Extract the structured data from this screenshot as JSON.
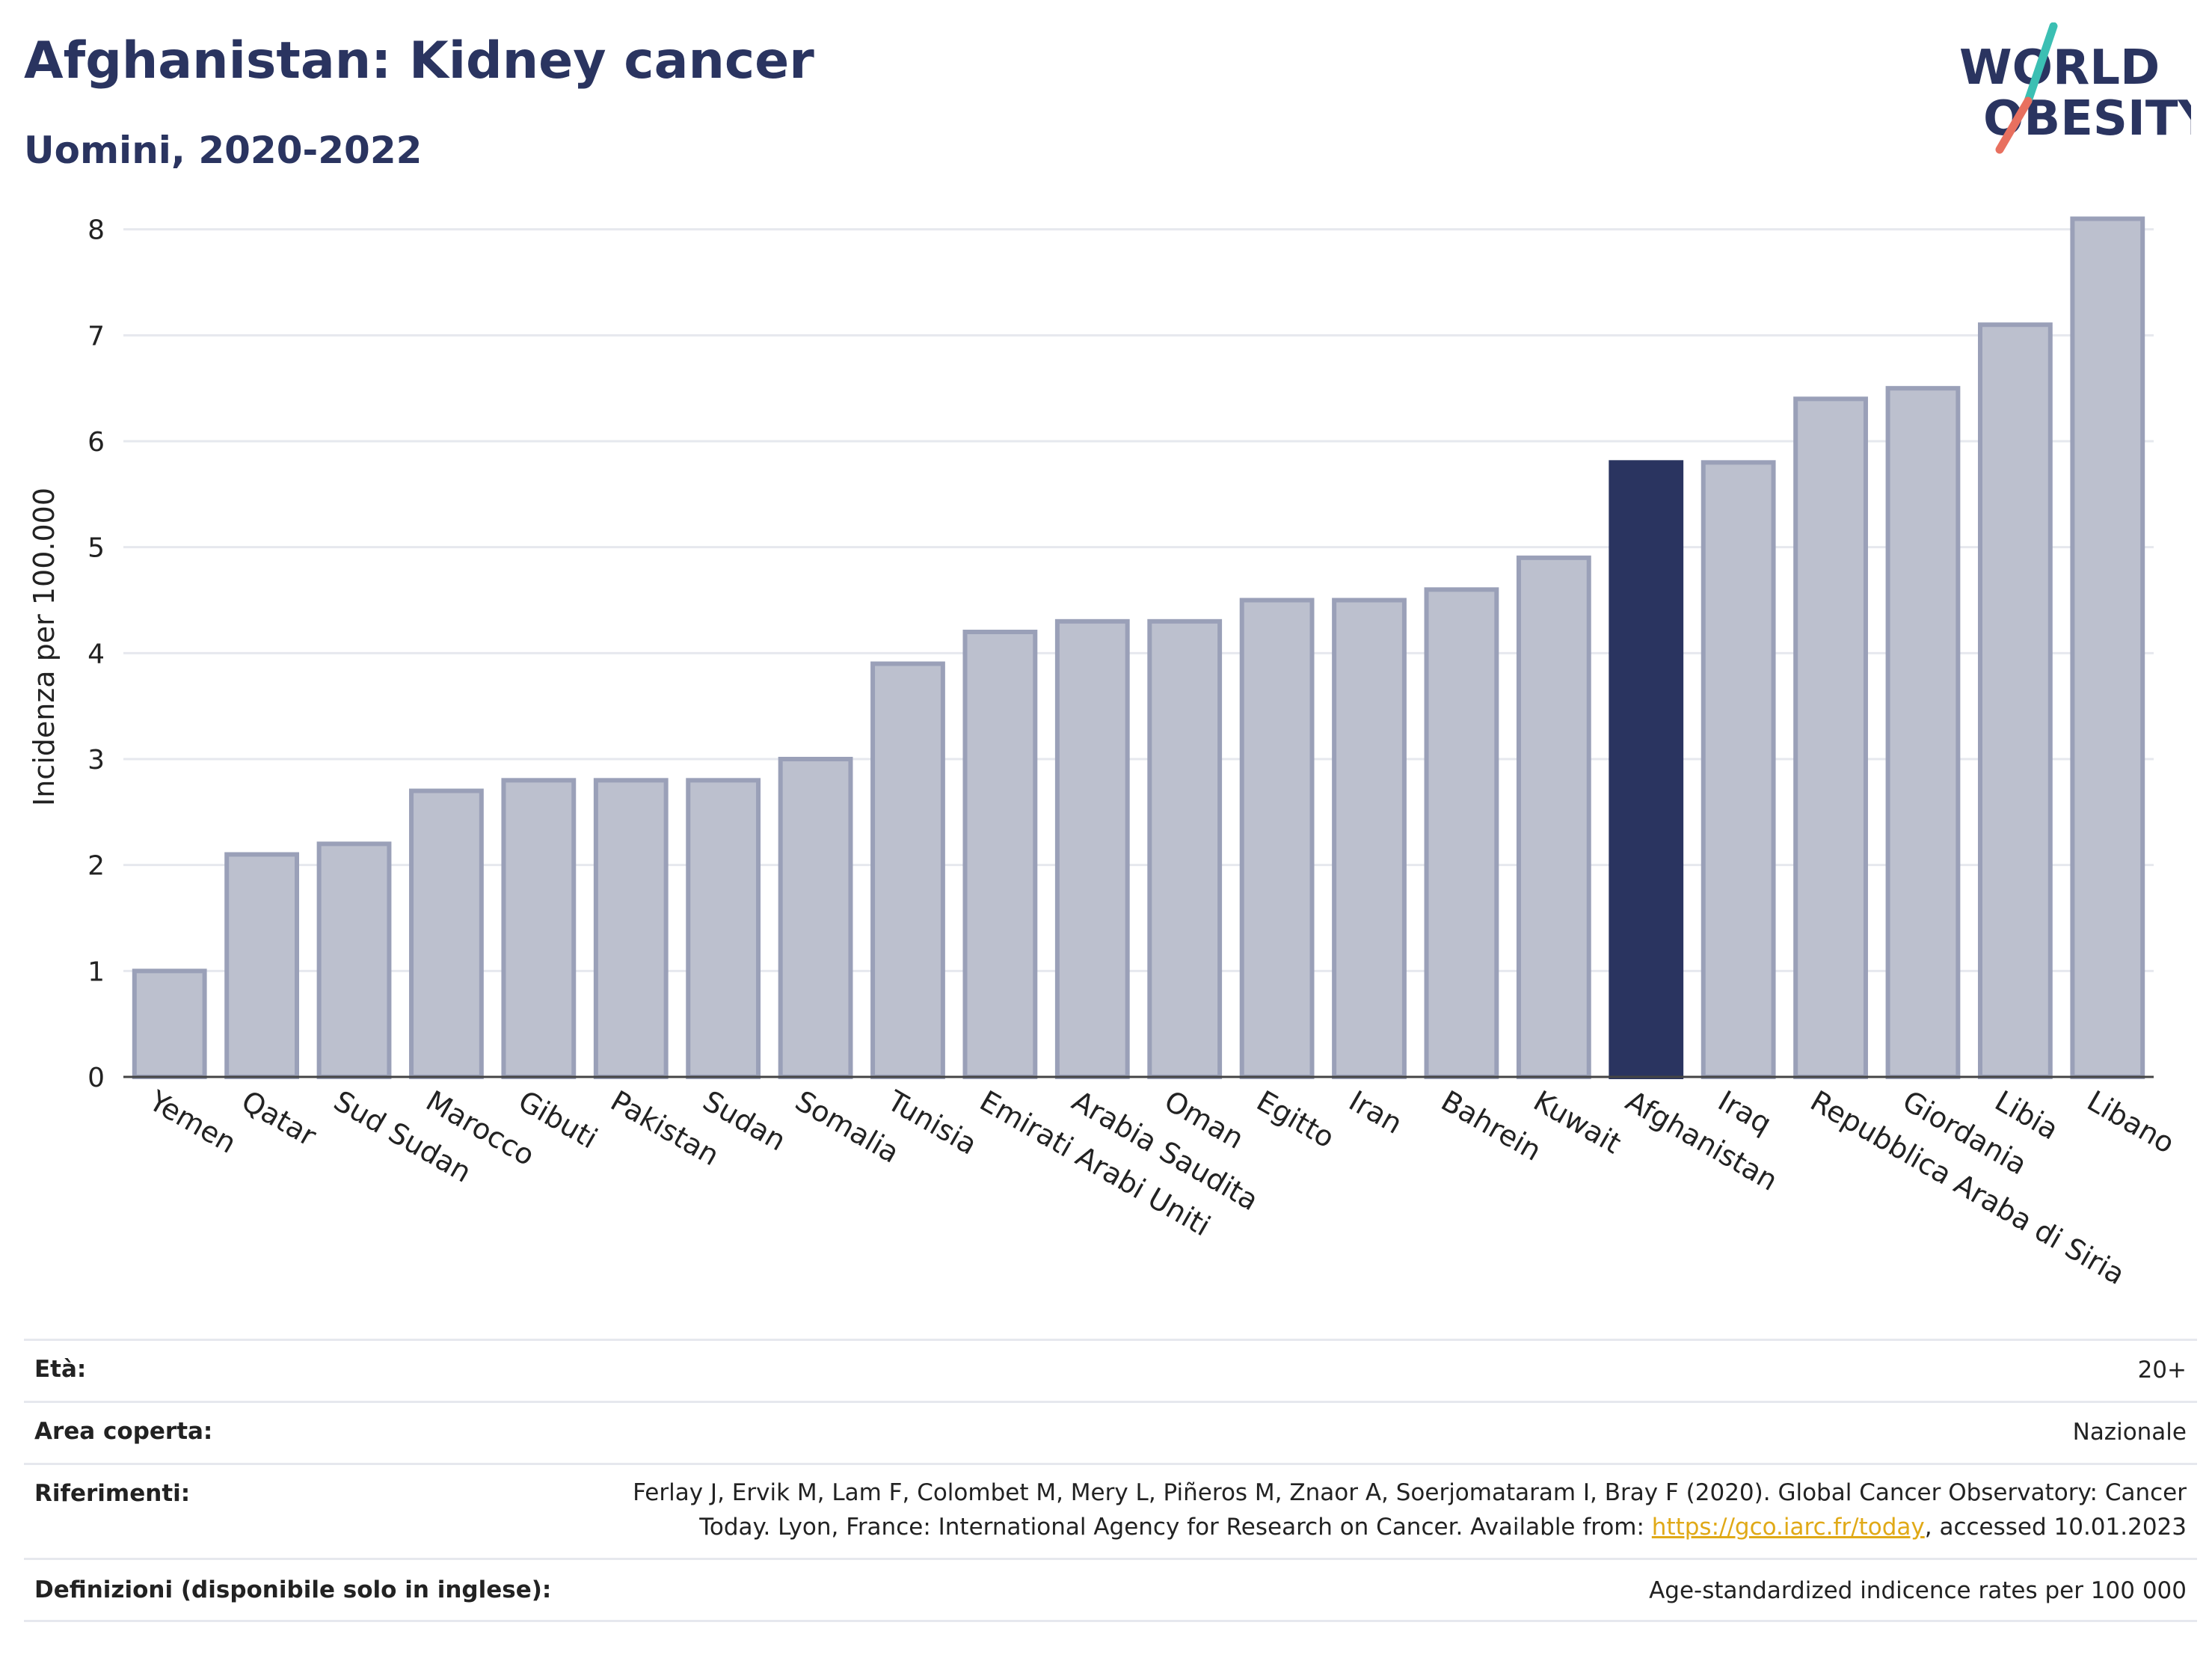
{
  "header": {
    "title": "Afghanistan: Kidney cancer",
    "subtitle": "Uomini, 2020-2022"
  },
  "logo": {
    "line1": "WORLD",
    "line2": "OBESITY",
    "accent_teal": "#3bbfb3",
    "accent_red": "#e8705f"
  },
  "chart_data": {
    "type": "bar",
    "ylabel": "Incidenza per 100.000",
    "xlabel": "",
    "ylim": [
      0,
      8.4
    ],
    "yticks": [
      0,
      1,
      2,
      3,
      4,
      5,
      6,
      7,
      8
    ],
    "grid": true,
    "highlight": "Afghanistan",
    "colors": {
      "bar": "#bcc0ce",
      "bar_edge": "#9aa0b8",
      "highlight": "#2a3460"
    },
    "categories": [
      "Yemen",
      "Qatar",
      "Sud Sudan",
      "Marocco",
      "Gibuti",
      "Pakistan",
      "Sudan",
      "Somalia",
      "Tunisia",
      "Emirati Arabi Uniti",
      "Arabia Saudita",
      "Oman",
      "Egitto",
      "Iran",
      "Bahrein",
      "Kuwait",
      "Afghanistan",
      "Iraq",
      "Repubblica Araba di Siria",
      "Giordania",
      "Libia",
      "Libano"
    ],
    "values": [
      1.0,
      2.1,
      2.2,
      2.7,
      2.8,
      2.8,
      2.8,
      3.0,
      3.9,
      4.2,
      4.3,
      4.3,
      4.5,
      4.5,
      4.6,
      4.9,
      5.8,
      5.8,
      6.4,
      6.5,
      7.1,
      8.1
    ]
  },
  "info": {
    "age_label": "Età:",
    "age_value": "20+",
    "area_label": "Area coperta:",
    "area_value": "Nazionale",
    "refs_label": "Riferimenti:",
    "refs_line1": "Ferlay J, Ervik M, Lam F, Colombet M, Mery L, Piñeros M, Znaor A, Soerjomataram I, Bray F (2020). Global Cancer Observatory: Cancer",
    "refs_line2_pre": "Today. Lyon, France: International Agency for Research on Cancer. Available from: ",
    "refs_link": "https://gco.iarc.fr/today",
    "refs_line2_post": ", accessed 10.01.2023",
    "defs_label": "Definizioni (disponibile solo in inglese):",
    "defs_value": "Age-standardized indicence rates per 100 000"
  }
}
